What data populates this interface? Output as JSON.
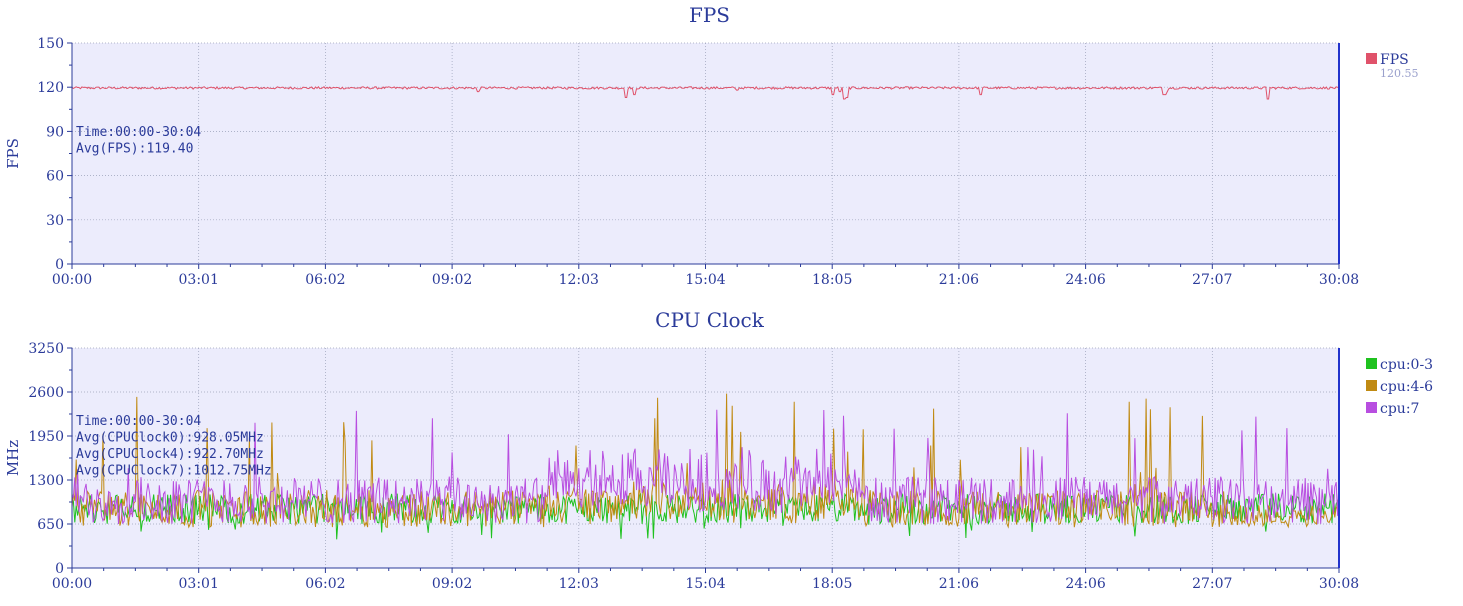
{
  "theme": {
    "plot_bg": "#ececfc",
    "axis_color": "#2b3b9a",
    "grid_color": "#9aa0b8"
  },
  "chart_data": [
    {
      "type": "line",
      "title": "FPS",
      "ylabel": "FPS",
      "xlabel": "",
      "ylim": [
        0,
        150
      ],
      "yticks": [
        "0",
        "30",
        "60",
        "90",
        "120",
        "150"
      ],
      "ytick_values": [
        0,
        30,
        60,
        90,
        120,
        150
      ],
      "xticks": [
        "00:00",
        "03:01",
        "06:02",
        "09:02",
        "12:03",
        "15:04",
        "18:05",
        "21:06",
        "24:06",
        "27:07",
        "30:08"
      ],
      "xrange_seconds": [
        0,
        1808
      ],
      "grid": true,
      "legend_position": "right",
      "annotations": [
        "Time:00:00-30:04",
        "Avg(FPS):119.40"
      ],
      "series": [
        {
          "name": "FPS",
          "color": "#e0526a",
          "legend_value": "120.55",
          "base": 119.5,
          "noise": 0.8,
          "dips": [
            [
              790,
              113
            ],
            [
              802,
              115
            ],
            [
              1085,
              115
            ],
            [
              1096,
              117
            ],
            [
              1102,
              112
            ],
            [
              1106,
              113
            ],
            [
              1297,
              115
            ],
            [
              1559,
              115
            ],
            [
              1562,
              117
            ],
            [
              1706,
              112
            ],
            [
              580,
              117
            ],
            [
              950,
              118
            ]
          ]
        }
      ]
    },
    {
      "type": "line",
      "title": "CPU Clock",
      "ylabel": "MHz",
      "xlabel": "",
      "ylim": [
        0,
        3250
      ],
      "yticks": [
        "0",
        "650",
        "1300",
        "1950",
        "2600",
        "3250"
      ],
      "ytick_values": [
        0,
        650,
        1300,
        1950,
        2600,
        3250
      ],
      "xticks": [
        "00:00",
        "03:01",
        "06:02",
        "09:02",
        "12:03",
        "15:04",
        "18:05",
        "21:06",
        "24:06",
        "27:07",
        "30:08"
      ],
      "xrange_seconds": [
        0,
        1808
      ],
      "grid": true,
      "legend_position": "right",
      "annotations": [
        "Time:00:00-30:04",
        "Avg(CPUClock0):928.05MHz",
        "Avg(CPUClock4):922.70MHz",
        "Avg(CPUClock7):1012.75MHz"
      ],
      "series": [
        {
          "name": "cpu:0-3",
          "color": "#1fc21f",
          "avg": 928.05,
          "lo": 650,
          "hi": 1100,
          "min": 420
        },
        {
          "name": "cpu:4-6",
          "color": "#c08a12",
          "avg": 922.7,
          "lo": 600,
          "hi": 1150,
          "max": 2600
        },
        {
          "name": "cpu:7",
          "color": "#b84ee0",
          "avg": 1012.75,
          "lo": 650,
          "hi": 1350,
          "max": 2350
        }
      ]
    }
  ]
}
